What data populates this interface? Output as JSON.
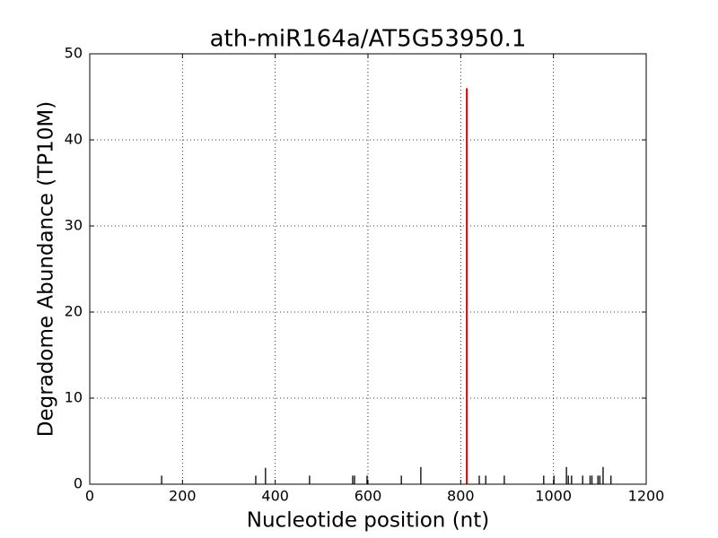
{
  "chart_data": {
    "type": "stem",
    "title": "ath-miR164a/AT5G53950.1",
    "xlabel": "Nucleotide position (nt)",
    "ylabel": "Degradome Abundance (TP10M)",
    "series": [
      {
        "color": "#000000",
        "x": [
          155,
          358,
          379,
          474,
          567,
          571,
          598,
          672,
          714,
          840,
          854,
          894,
          979,
          1001,
          1028,
          1032,
          1039,
          1063,
          1079,
          1083,
          1096,
          1100,
          1107,
          1124
        ],
        "values": [
          1,
          1,
          1.9,
          1,
          1,
          1,
          1,
          1,
          2,
          1,
          1,
          1,
          1,
          1,
          2,
          1,
          1,
          1,
          1,
          1,
          1,
          1,
          2,
          1
        ]
      },
      {
        "color": "#ff0000",
        "x": [
          813
        ],
        "values": [
          46
        ]
      }
    ],
    "xlim": [
      0,
      1200
    ],
    "xticks": [
      0,
      200,
      400,
      600,
      800,
      1000,
      1200
    ],
    "ylim": [
      0,
      50
    ],
    "yticks": [
      0,
      10,
      20,
      30,
      40,
      50
    ],
    "grid": true
  }
}
